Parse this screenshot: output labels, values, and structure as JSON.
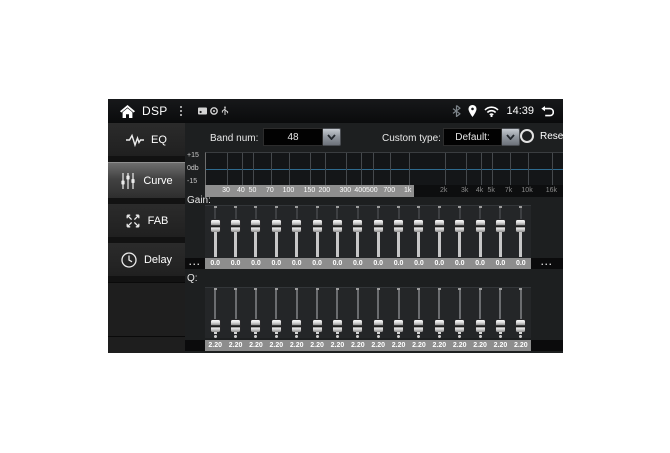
{
  "status_bar": {
    "app_title": "DSP",
    "time": "14:39"
  },
  "sidebar": {
    "items": [
      {
        "id": "eq",
        "label": "EQ",
        "icon": "eq-waveform-icon",
        "selected": false
      },
      {
        "id": "curve",
        "label": "Curve",
        "icon": "sliders-icon",
        "selected": true
      },
      {
        "id": "fab",
        "label": "FAB",
        "icon": "fab-arrows-icon",
        "selected": false
      },
      {
        "id": "delay",
        "label": "Delay",
        "icon": "clock-icon",
        "selected": false
      }
    ]
  },
  "controls": {
    "band_num_label": "Band num:",
    "band_num_value": "48",
    "custom_type_label": "Custom type:",
    "custom_type_value": "Default:",
    "reset_label": "Reset"
  },
  "eq_graph": {
    "y_axis_labels": [
      "+15",
      "0db",
      "-15"
    ],
    "zero_line_color": "#2f6b8f",
    "visible_window_percent": 58.5,
    "freq_ticks": [
      {
        "label": "30",
        "hz": 30
      },
      {
        "label": "40",
        "hz": 40
      },
      {
        "label": "50",
        "hz": 50
      },
      {
        "label": "70",
        "hz": 70
      },
      {
        "label": "100",
        "hz": 100
      },
      {
        "label": "150",
        "hz": 150
      },
      {
        "label": "200",
        "hz": 200
      },
      {
        "label": "300",
        "hz": 300
      },
      {
        "label": "400",
        "hz": 400
      },
      {
        "label": "500",
        "hz": 500
      },
      {
        "label": "700",
        "hz": 700
      },
      {
        "label": "1k",
        "hz": 1000
      },
      {
        "label": "2k",
        "hz": 2000
      },
      {
        "label": "3k",
        "hz": 3000
      },
      {
        "label": "4k",
        "hz": 4000
      },
      {
        "label": "5k",
        "hz": 5000
      },
      {
        "label": "7k",
        "hz": 7000
      },
      {
        "label": "10k",
        "hz": 10000
      },
      {
        "label": "16k",
        "hz": 16000
      }
    ]
  },
  "gain_section": {
    "label": "Gain:",
    "handle_top_percent": 28,
    "values": [
      "0.0",
      "0.0",
      "0.0",
      "0.0",
      "0.0",
      "0.0",
      "0.0",
      "0.0",
      "0.0",
      "0.0",
      "0.0",
      "0.0",
      "0.0",
      "0.0",
      "0.0",
      "0.0"
    ]
  },
  "q_section": {
    "label": "Q:",
    "handle_top_percent": 72,
    "values": [
      "2.20",
      "2.20",
      "2.20",
      "2.20",
      "2.20",
      "2.20",
      "2.20",
      "2.20",
      "2.20",
      "2.20",
      "2.20",
      "2.20",
      "2.20",
      "2.20",
      "2.20",
      "2.20"
    ]
  },
  "scroll": {
    "ellipsis": "..."
  }
}
